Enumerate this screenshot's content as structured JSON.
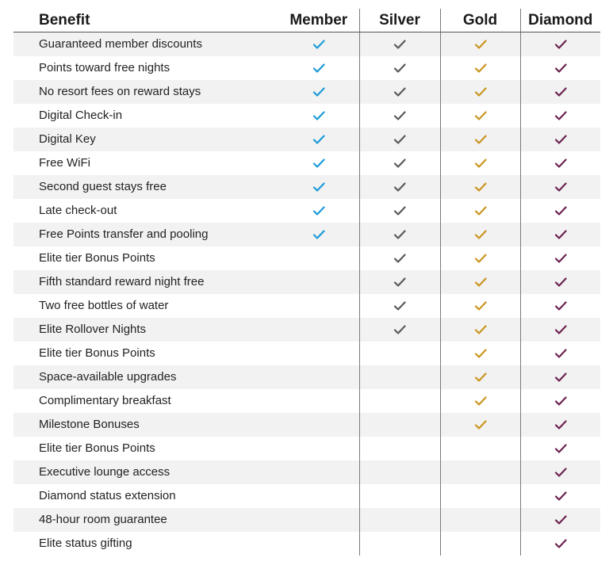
{
  "colors": {
    "member": "#1a9bd7",
    "silver": "#5a5a5a",
    "gold": "#c9951f",
    "diamond": "#6b2350"
  },
  "icons": {
    "check": "checkmark-icon"
  },
  "header": {
    "benefit": "Benefit",
    "member": "Member",
    "silver": "Silver",
    "gold": "Gold",
    "diamond": "Diamond"
  },
  "rows": [
    {
      "benefit": "Guaranteed member discounts",
      "member": true,
      "silver": true,
      "gold": true,
      "diamond": true
    },
    {
      "benefit": "Points toward free nights",
      "member": true,
      "silver": true,
      "gold": true,
      "diamond": true
    },
    {
      "benefit": "No resort fees on reward stays",
      "member": true,
      "silver": true,
      "gold": true,
      "diamond": true
    },
    {
      "benefit": "Digital Check-in",
      "member": true,
      "silver": true,
      "gold": true,
      "diamond": true
    },
    {
      "benefit": "Digital Key",
      "member": true,
      "silver": true,
      "gold": true,
      "diamond": true
    },
    {
      "benefit": "Free WiFi",
      "member": true,
      "silver": true,
      "gold": true,
      "diamond": true
    },
    {
      "benefit": "Second guest stays free",
      "member": true,
      "silver": true,
      "gold": true,
      "diamond": true
    },
    {
      "benefit": "Late check-out",
      "member": true,
      "silver": true,
      "gold": true,
      "diamond": true
    },
    {
      "benefit": "Free Points transfer and pooling",
      "member": true,
      "silver": true,
      "gold": true,
      "diamond": true
    },
    {
      "benefit": "Elite tier Bonus Points",
      "member": false,
      "silver": true,
      "gold": true,
      "diamond": true
    },
    {
      "benefit": "Fifth standard reward night free",
      "member": false,
      "silver": true,
      "gold": true,
      "diamond": true
    },
    {
      "benefit": "Two free bottles of water",
      "member": false,
      "silver": true,
      "gold": true,
      "diamond": true
    },
    {
      "benefit": "Elite Rollover Nights",
      "member": false,
      "silver": true,
      "gold": true,
      "diamond": true
    },
    {
      "benefit": "Elite tier Bonus Points",
      "member": false,
      "silver": false,
      "gold": true,
      "diamond": true
    },
    {
      "benefit": "Space-available upgrades",
      "member": false,
      "silver": false,
      "gold": true,
      "diamond": true
    },
    {
      "benefit": "Complimentary breakfast",
      "member": false,
      "silver": false,
      "gold": true,
      "diamond": true
    },
    {
      "benefit": "Milestone Bonuses",
      "member": false,
      "silver": false,
      "gold": true,
      "diamond": true
    },
    {
      "benefit": "Elite tier Bonus Points",
      "member": false,
      "silver": false,
      "gold": false,
      "diamond": true
    },
    {
      "benefit": "Executive lounge access",
      "member": false,
      "silver": false,
      "gold": false,
      "diamond": true
    },
    {
      "benefit": "Diamond status extension",
      "member": false,
      "silver": false,
      "gold": false,
      "diamond": true
    },
    {
      "benefit": "48-hour room guarantee",
      "member": false,
      "silver": false,
      "gold": false,
      "diamond": true
    },
    {
      "benefit": "Elite status gifting",
      "member": false,
      "silver": false,
      "gold": false,
      "diamond": true
    }
  ]
}
